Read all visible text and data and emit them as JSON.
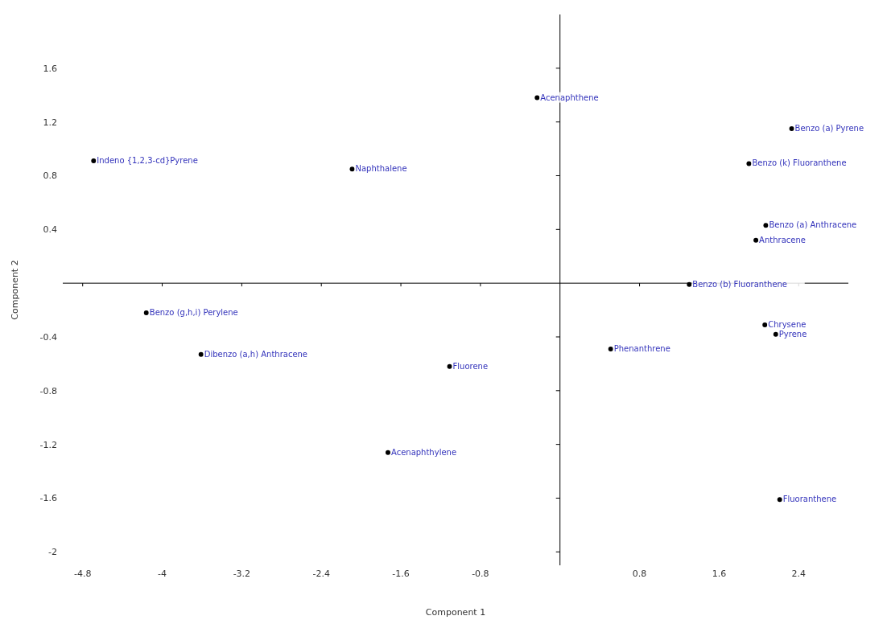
{
  "chart_data": {
    "type": "scatter",
    "xlabel": "Component 1",
    "ylabel": "Component 2",
    "x": [
      -4.69,
      -2.09,
      -0.23,
      2.33,
      1.9,
      2.07,
      1.97,
      1.3,
      -4.16,
      -3.61,
      -1.11,
      -1.73,
      0.51,
      2.06,
      2.17,
      2.21
    ],
    "series": [
      {
        "color": "#000000",
        "values": [
          0.91,
          0.85,
          1.38,
          1.15,
          0.89,
          0.43,
          0.32,
          -0.01,
          -0.22,
          -0.53,
          -0.62,
          -1.26,
          -0.49,
          -0.31,
          -0.38,
          -1.61
        ]
      }
    ],
    "annotations": [
      {
        "text": "Indeno {1,2,3-cd}Pyrene",
        "x": -4.69,
        "y": 0.91
      },
      {
        "text": "Naphthalene",
        "x": -2.09,
        "y": 0.85
      },
      {
        "text": "Acenaphthene",
        "x": -0.23,
        "y": 1.38
      },
      {
        "text": "Benzo (a) Pyrene",
        "x": 2.33,
        "y": 1.15
      },
      {
        "text": "Benzo (k) Fluoranthene",
        "x": 1.9,
        "y": 0.89
      },
      {
        "text": "Benzo (a) Anthracene",
        "x": 2.07,
        "y": 0.43
      },
      {
        "text": "Anthracene",
        "x": 1.97,
        "y": 0.32
      },
      {
        "text": "Benzo (b) Fluoranthene",
        "x": 1.3,
        "y": -0.01
      },
      {
        "text": "Benzo (g,h,i) Perylene",
        "x": -4.16,
        "y": -0.22
      },
      {
        "text": "Dibenzo (a,h) Anthracene",
        "x": -3.61,
        "y": -0.53
      },
      {
        "text": "Fluorene",
        "x": -1.11,
        "y": -0.62
      },
      {
        "text": "Acenaphthylene",
        "x": -1.73,
        "y": -1.26
      },
      {
        "text": "Phenanthrene",
        "x": 0.51,
        "y": -0.49
      },
      {
        "text": "Chrysene",
        "x": 2.06,
        "y": -0.31
      },
      {
        "text": "Pyrene",
        "x": 2.17,
        "y": -0.38
      },
      {
        "text": "Fluoranthene",
        "x": 2.21,
        "y": -1.61
      }
    ],
    "xlim": [
      -5.0,
      2.9
    ],
    "ylim": [
      -2.1,
      2.0
    ],
    "xticks": [
      -4.8,
      -4.0,
      -3.2,
      -2.4,
      -1.6,
      -0.8,
      0.8,
      1.6,
      2.4
    ],
    "yticks": [
      -2.0,
      -1.6,
      -1.2,
      -0.8,
      -0.4,
      0.4,
      0.8,
      1.2,
      1.6
    ],
    "marker": "circle",
    "grid": false,
    "legend": false
  }
}
